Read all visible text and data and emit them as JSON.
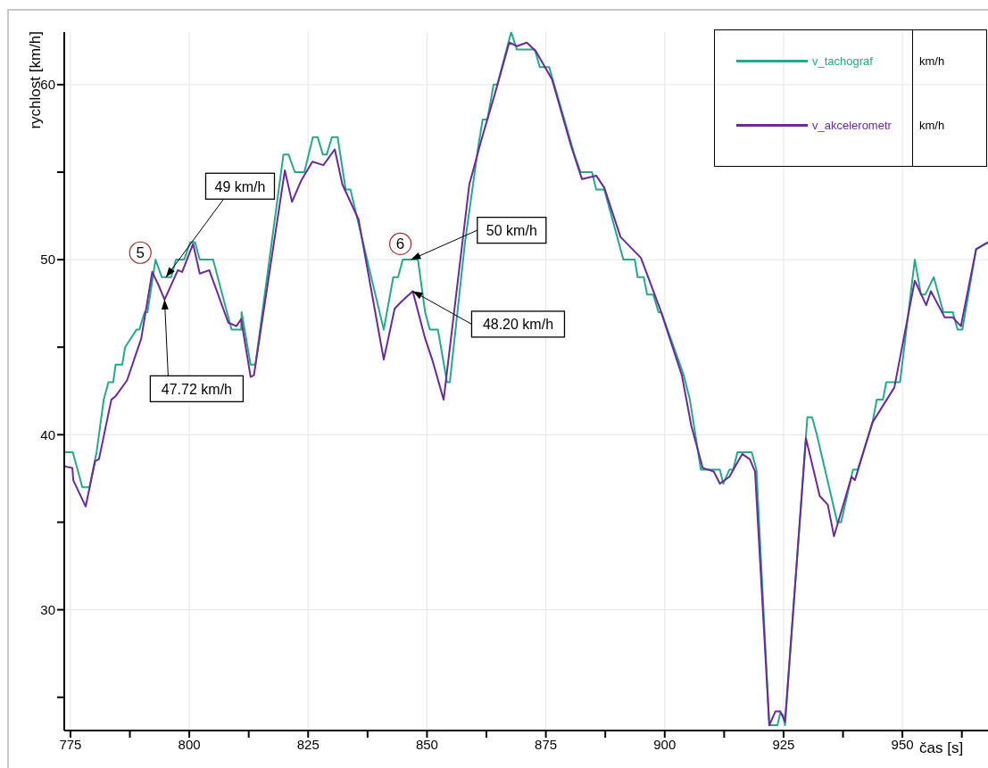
{
  "chart_data": {
    "type": "line",
    "xlabel": "čas [s]",
    "ylabel": "rychlost [km/h]",
    "xlim": [
      773.7,
      968
    ],
    "ylim": [
      23.1,
      63
    ],
    "xticks": [
      775,
      {
        "value": 787.5,
        "label": null
      },
      800,
      {
        "value": 812.5,
        "label": null
      },
      825,
      {
        "value": 837.5,
        "label": null
      },
      850,
      {
        "value": 862.5,
        "label": null
      },
      875,
      {
        "value": 887.5,
        "label": null
      },
      900,
      {
        "value": 912.5,
        "label": null
      },
      925,
      {
        "value": 937.5,
        "label": null
      },
      950,
      {
        "value": 962.5,
        "label": null
      }
    ],
    "yticks": [
      {
        "value": 25,
        "label": null
      },
      30,
      {
        "value": 35,
        "label": null
      },
      40,
      {
        "value": 45,
        "label": null
      },
      50,
      {
        "value": 55,
        "label": null
      },
      60
    ],
    "grid": true,
    "legend": "top right",
    "marker": "none",
    "line_style": "solid",
    "series": [
      {
        "name": "v_tachograf",
        "color": "#26a88a",
        "x": [
          773.7,
          775.5,
          776.5,
          777.5,
          779,
          780.5,
          782,
          783,
          784,
          784.5,
          785.9,
          786.5,
          788.9,
          789.5,
          790.6,
          791.2,
          792.9,
          794.2,
          796.2,
          797.2,
          798.9,
          800.2,
          801.2,
          802.2,
          805,
          808.9,
          810.9,
          811,
          812.9,
          813.9,
          819.8,
          820.9,
          822.2,
          824.2,
          826,
          827,
          828.1,
          828.9,
          830,
          831.2,
          832.9,
          833.9,
          840.9,
          842.9,
          843.9,
          844.9,
          848.1,
          849.6,
          850.6,
          852.3,
          854.2,
          854.8,
          858,
          860.8,
          861.7,
          862.7,
          864,
          864.8,
          867.7,
          868.9,
          872.7,
          873.7,
          875.7,
          881,
          882.3,
          884.7,
          885.6,
          887.3,
          891.3,
          893.7,
          894.3,
          895.6,
          896.3,
          897.6,
          898.7,
          899.3,
          904,
          905.3,
          907.6,
          911.6,
          912.3,
          913.6,
          914.4,
          915.3,
          918.3,
          919.3,
          922,
          923.7,
          924.3,
          924.9,
          925.3,
          930,
          931,
          932,
          936.3,
          937.1,
          939.6,
          940.6,
          943.7,
          944.6,
          945.9,
          946.6,
          948.6,
          949.5,
          952.6,
          953.9,
          954.8,
          956.6,
          958.6,
          960.6,
          961.6,
          962.6,
          965.5,
          968
        ],
        "values": [
          39,
          39,
          38,
          37,
          37,
          39,
          42,
          43,
          43,
          44,
          44,
          45,
          46,
          46,
          47,
          47,
          50,
          49,
          49,
          50,
          50,
          51,
          51,
          50,
          50,
          46,
          46,
          47,
          44,
          44,
          56,
          56,
          55,
          55,
          57,
          57,
          56,
          56,
          57,
          57,
          54,
          54,
          46,
          49,
          49,
          50,
          50,
          47,
          46,
          46,
          43,
          43,
          51,
          56.5,
          58,
          58,
          60,
          60,
          63,
          62,
          62,
          61,
          61,
          56,
          55,
          55,
          54,
          54,
          50,
          50,
          49,
          49,
          48,
          48,
          47,
          47,
          43.4,
          42,
          38,
          38,
          37.2,
          38,
          38,
          39,
          39,
          38,
          23.4,
          23.4,
          24.1,
          24,
          23.4,
          41,
          41,
          40,
          35,
          35,
          38,
          38,
          40.7,
          42,
          42,
          43,
          43,
          43,
          50,
          48,
          48,
          49,
          47,
          47,
          46,
          46,
          50.6,
          51
        ]
      },
      {
        "name": "v_akcelerometr",
        "color": "#6a2a9a",
        "x": [
          773.7,
          775.4,
          775.6,
          778.2,
          780.2,
          781,
          783.6,
          784.5,
          786.9,
          789.9,
          792.2,
          793.6,
          794.8,
          797.6,
          798.5,
          800.8,
          802.2,
          804.2,
          808.2,
          809.9,
          810.9,
          812.9,
          813.6,
          820.1,
          821.6,
          823.5,
          825.9,
          828.2,
          830.6,
          832.2,
          835.6,
          840.9,
          843.2,
          844.6,
          847,
          849.6,
          851.2,
          853.5,
          858.9,
          861.6,
          864.2,
          867.3,
          868.9,
          871,
          872.9,
          876.3,
          880.3,
          882.6,
          885.6,
          887.3,
          890.7,
          895,
          899,
          903.6,
          905.6,
          908,
          910.3,
          911.6,
          913.6,
          916.3,
          917.9,
          919,
          922,
          923.3,
          924.3,
          925.3,
          929.7,
          932.6,
          934.3,
          935.6,
          939.3,
          940,
          943.7,
          948.3,
          952.6,
          955,
          956,
          958.9,
          960.6,
          962.3,
          965.5,
          968
        ],
        "values": [
          38.2,
          38.1,
          37.4,
          35.9,
          38.5,
          38.6,
          42,
          42.2,
          43.1,
          45.5,
          49.3,
          48.5,
          47.72,
          49.4,
          49.3,
          50.9,
          49.2,
          49.4,
          46.4,
          46.2,
          46.6,
          43.3,
          43.4,
          55.1,
          53.3,
          54.5,
          55.6,
          55.4,
          56.3,
          54.3,
          52.3,
          44.3,
          47.2,
          47.6,
          48.2,
          45.5,
          44.2,
          42,
          54.3,
          57,
          59.4,
          62.4,
          62.2,
          62.4,
          61.9,
          60.3,
          56.5,
          54.6,
          54.8,
          54.1,
          51.3,
          50.1,
          47.2,
          43.4,
          40.5,
          38.1,
          37.9,
          37.2,
          37.6,
          38.9,
          38.6,
          37.9,
          23.4,
          24.2,
          24.2,
          23.6,
          39.8,
          36.5,
          36,
          34.2,
          37.6,
          37.4,
          40.7,
          42.7,
          48.8,
          47.4,
          48.2,
          46.7,
          46.7,
          46.2,
          50.6,
          51
        ]
      }
    ],
    "annotations": [
      {
        "text": "5",
        "x": 789.7,
        "y": 50.4
      },
      {
        "text": "49 km/h",
        "x": 795.1,
        "y": 49
      },
      {
        "text": "47.72 km/h",
        "x": 794.8,
        "y": 47.72
      },
      {
        "text": "6",
        "x": 844.4,
        "y": 50.9
      },
      {
        "text": "50 km/h",
        "x": 846.6,
        "y": 50
      },
      {
        "text": "48.20 km/h",
        "x": 847,
        "y": 48.2
      },
      "km/h",
      "km/h"
    ]
  }
}
